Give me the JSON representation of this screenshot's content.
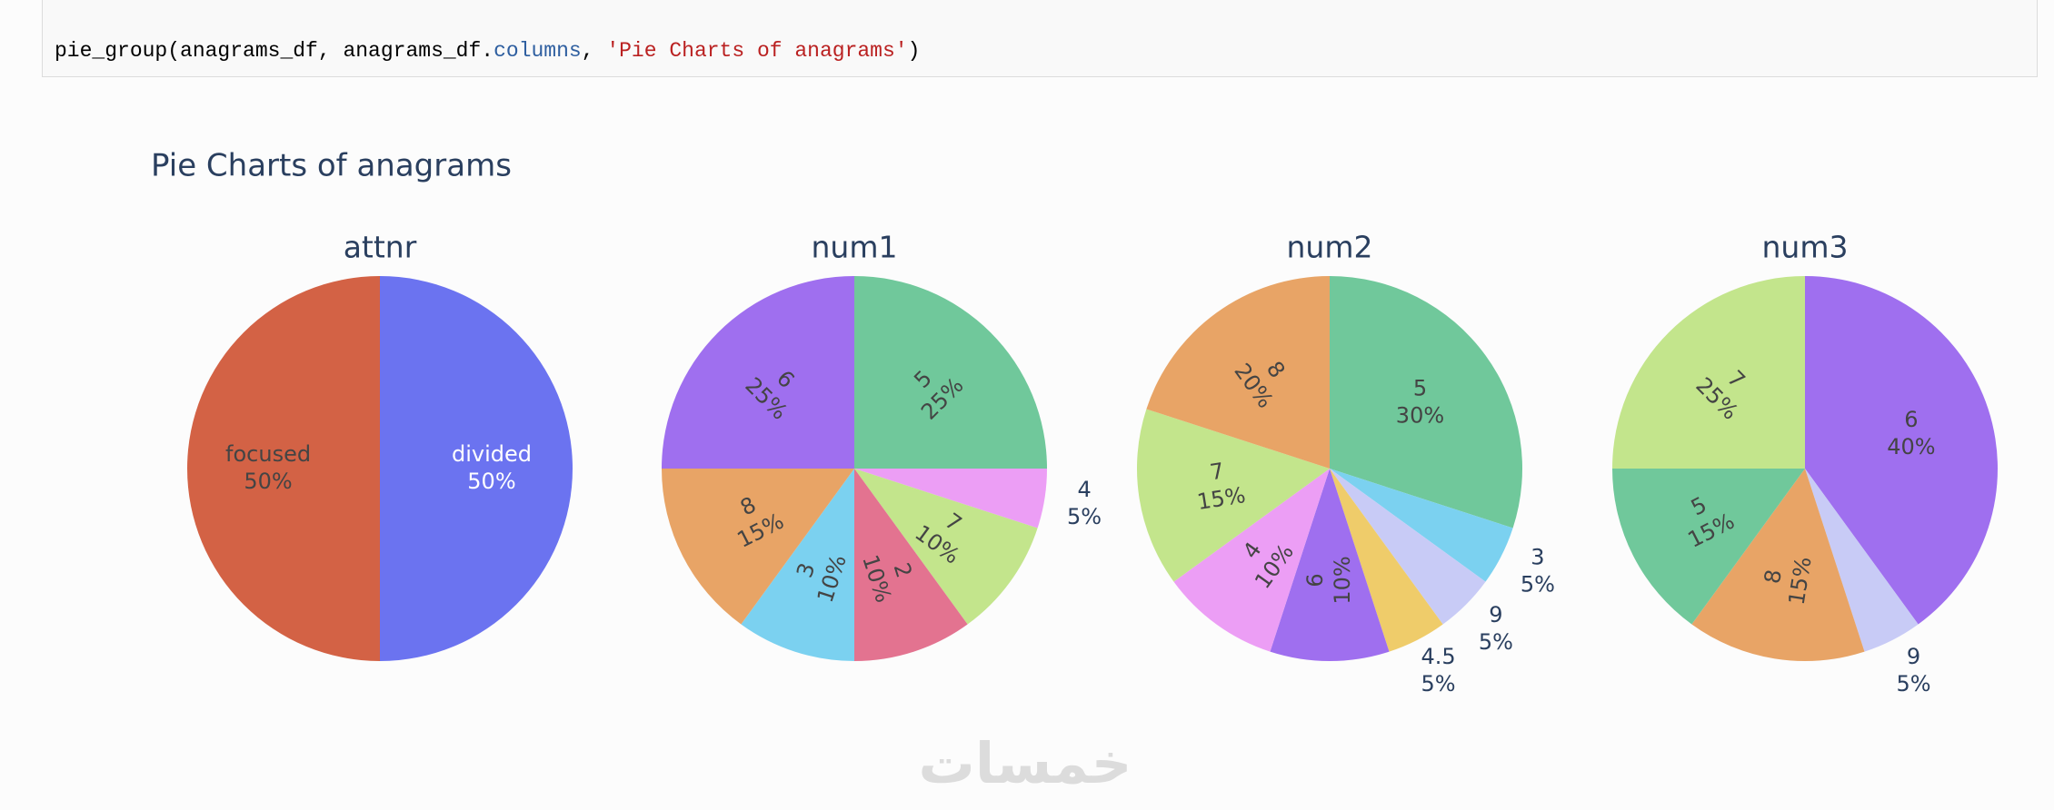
{
  "code": [
    {
      "text": "pie_group(anagrams_df, anagrams_df.",
      "color": "#000000"
    },
    {
      "text": "columns",
      "color": "#2f5fa0"
    },
    {
      "text": ", ",
      "color": "#000000"
    },
    {
      "text": "'Pie Charts of anagrams'",
      "color": "#ba2121"
    },
    {
      "text": ")",
      "color": "#000000"
    }
  ],
  "figure_title": "Pie Charts of anagrams",
  "watermark": "خمسات",
  "chart_data": [
    {
      "type": "pie",
      "title": "attnr",
      "categories": [
        "divided",
        "focused"
      ],
      "values": [
        50,
        50
      ],
      "value_labels": [
        "50%",
        "50%"
      ],
      "colors": [
        "#6b73f0",
        "#d36245"
      ]
    },
    {
      "type": "pie",
      "title": "num1",
      "categories": [
        "5",
        "4",
        "7",
        "2",
        "3",
        "8",
        "6"
      ],
      "values": [
        25,
        5,
        10,
        10,
        10,
        15,
        25
      ],
      "value_labels": [
        "25%",
        "5%",
        "10%",
        "10%",
        "10%",
        "15%",
        "25%"
      ],
      "colors": [
        "#70c89b",
        "#ec9ef5",
        "#c3e58c",
        "#e37390",
        "#7bd1f0",
        "#e8a466",
        "#9f6fef"
      ]
    },
    {
      "type": "pie",
      "title": "num2",
      "categories": [
        "5",
        "3",
        "9",
        "4.5",
        "6",
        "4",
        "7",
        "8"
      ],
      "values": [
        30,
        5,
        5,
        5,
        10,
        10,
        15,
        20
      ],
      "value_labels": [
        "30%",
        "5%",
        "5%",
        "5%",
        "10%",
        "10%",
        "15%",
        "20%"
      ],
      "colors": [
        "#70c89b",
        "#7bd1f0",
        "#c8cbf6",
        "#efcc6a",
        "#9f6fef",
        "#ec9ef5",
        "#c3e58c",
        "#e8a466"
      ]
    },
    {
      "type": "pie",
      "title": "num3",
      "categories": [
        "6",
        "9",
        "8",
        "5",
        "7"
      ],
      "values": [
        40,
        5,
        15,
        15,
        25
      ],
      "value_labels": [
        "40%",
        "5%",
        "15%",
        "15%",
        "25%"
      ],
      "colors": [
        "#9f6fef",
        "#c8cbf6",
        "#e8a466",
        "#70c89b",
        "#c3e58c"
      ]
    }
  ]
}
